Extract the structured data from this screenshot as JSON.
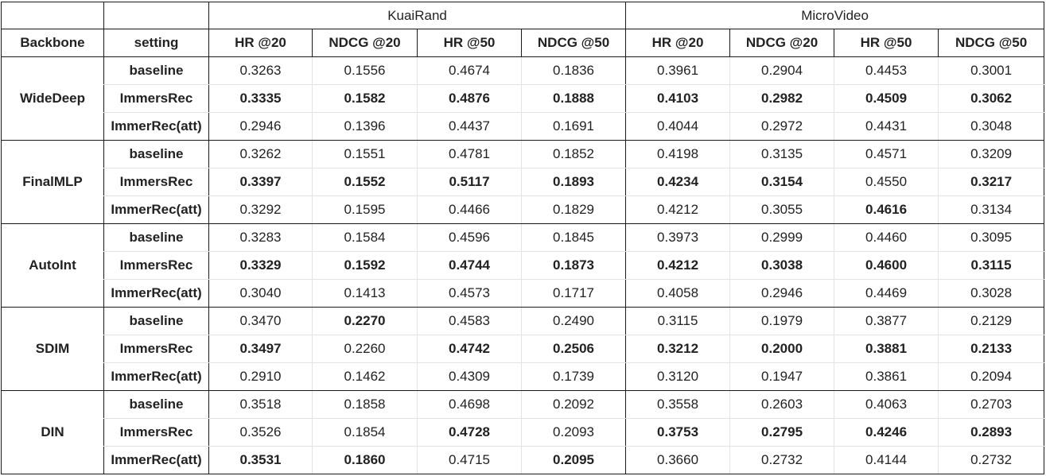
{
  "table": {
    "groups": [
      "KuaiRand",
      "MicroVideo"
    ],
    "headers": [
      "Backbone",
      "setting",
      "HR @20",
      "NDCG @20",
      "HR @50",
      "NDCG @50",
      "HR @20",
      "NDCG @20",
      "HR @50",
      "NDCG @50"
    ],
    "backbones": [
      {
        "name": "WideDeep",
        "rows": [
          {
            "setting": "baseline",
            "values": [
              "0.3263",
              "0.1556",
              "0.4674",
              "0.1836",
              "0.3961",
              "0.2904",
              "0.4453",
              "0.3001"
            ],
            "bold": [
              false,
              false,
              false,
              false,
              false,
              false,
              false,
              false
            ]
          },
          {
            "setting": "ImmersRec",
            "values": [
              "0.3335",
              "0.1582",
              "0.4876",
              "0.1888",
              "0.4103",
              "0.2982",
              "0.4509",
              "0.3062"
            ],
            "bold": [
              true,
              true,
              true,
              true,
              true,
              true,
              true,
              true
            ]
          },
          {
            "setting": "ImmerRec(att)",
            "values": [
              "0.2946",
              "0.1396",
              "0.4437",
              "0.1691",
              "0.4044",
              "0.2972",
              "0.4431",
              "0.3048"
            ],
            "bold": [
              false,
              false,
              false,
              false,
              false,
              false,
              false,
              false
            ]
          }
        ]
      },
      {
        "name": "FinalMLP",
        "rows": [
          {
            "setting": "baseline",
            "values": [
              "0.3262",
              "0.1551",
              "0.4781",
              "0.1852",
              "0.4198",
              "0.3135",
              "0.4571",
              "0.3209"
            ],
            "bold": [
              false,
              false,
              false,
              false,
              false,
              false,
              false,
              false
            ]
          },
          {
            "setting": "ImmersRec",
            "values": [
              "0.3397",
              "0.1552",
              "0.5117",
              "0.1893",
              "0.4234",
              "0.3154",
              "0.4550",
              "0.3217"
            ],
            "bold": [
              true,
              true,
              true,
              true,
              true,
              true,
              false,
              true
            ]
          },
          {
            "setting": "ImmerRec(att)",
            "values": [
              "0.3292",
              "0.1595",
              "0.4466",
              "0.1829",
              "0.4212",
              "0.3055",
              "0.4616",
              "0.3134"
            ],
            "bold": [
              false,
              false,
              false,
              false,
              false,
              false,
              true,
              false
            ]
          }
        ]
      },
      {
        "name": "AutoInt",
        "rows": [
          {
            "setting": "baseline",
            "values": [
              "0.3283",
              "0.1584",
              "0.4596",
              "0.1845",
              "0.3973",
              "0.2999",
              "0.4460",
              "0.3095"
            ],
            "bold": [
              false,
              false,
              false,
              false,
              false,
              false,
              false,
              false
            ]
          },
          {
            "setting": "ImmersRec",
            "values": [
              "0.3329",
              "0.1592",
              "0.4744",
              "0.1873",
              "0.4212",
              "0.3038",
              "0.4600",
              "0.3115"
            ],
            "bold": [
              true,
              true,
              true,
              true,
              true,
              true,
              true,
              true
            ]
          },
          {
            "setting": "ImmerRec(att)",
            "values": [
              "0.3040",
              "0.1413",
              "0.4573",
              "0.1717",
              "0.4058",
              "0.2946",
              "0.4469",
              "0.3028"
            ],
            "bold": [
              false,
              false,
              false,
              false,
              false,
              false,
              false,
              false
            ]
          }
        ]
      },
      {
        "name": "SDIM",
        "rows": [
          {
            "setting": "baseline",
            "values": [
              "0.3470",
              "0.2270",
              "0.4583",
              "0.2490",
              "0.3115",
              "0.1979",
              "0.3877",
              "0.2129"
            ],
            "bold": [
              false,
              true,
              false,
              false,
              false,
              false,
              false,
              false
            ]
          },
          {
            "setting": "ImmersRec",
            "values": [
              "0.3497",
              "0.2260",
              "0.4742",
              "0.2506",
              "0.3212",
              "0.2000",
              "0.3881",
              "0.2133"
            ],
            "bold": [
              true,
              false,
              true,
              true,
              true,
              true,
              true,
              true
            ]
          },
          {
            "setting": "ImmerRec(att)",
            "values": [
              "0.2910",
              "0.1462",
              "0.4309",
              "0.1739",
              "0.3120",
              "0.1947",
              "0.3861",
              "0.2094"
            ],
            "bold": [
              false,
              false,
              false,
              false,
              false,
              false,
              false,
              false
            ]
          }
        ]
      },
      {
        "name": "DIN",
        "rows": [
          {
            "setting": "baseline",
            "values": [
              "0.3518",
              "0.1858",
              "0.4698",
              "0.2092",
              "0.3558",
              "0.2603",
              "0.4063",
              "0.2703"
            ],
            "bold": [
              false,
              false,
              false,
              false,
              false,
              false,
              false,
              false
            ]
          },
          {
            "setting": "ImmersRec",
            "values": [
              "0.3526",
              "0.1854",
              "0.4728",
              "0.2093",
              "0.3753",
              "0.2795",
              "0.4246",
              "0.2893"
            ],
            "bold": [
              false,
              false,
              true,
              false,
              true,
              true,
              true,
              true
            ]
          },
          {
            "setting": "ImmerRec(att)",
            "values": [
              "0.3531",
              "0.1860",
              "0.4715",
              "0.2095",
              "0.3660",
              "0.2732",
              "0.4144",
              "0.2732"
            ],
            "bold": [
              true,
              true,
              false,
              true,
              false,
              false,
              false,
              false
            ]
          }
        ]
      }
    ]
  }
}
